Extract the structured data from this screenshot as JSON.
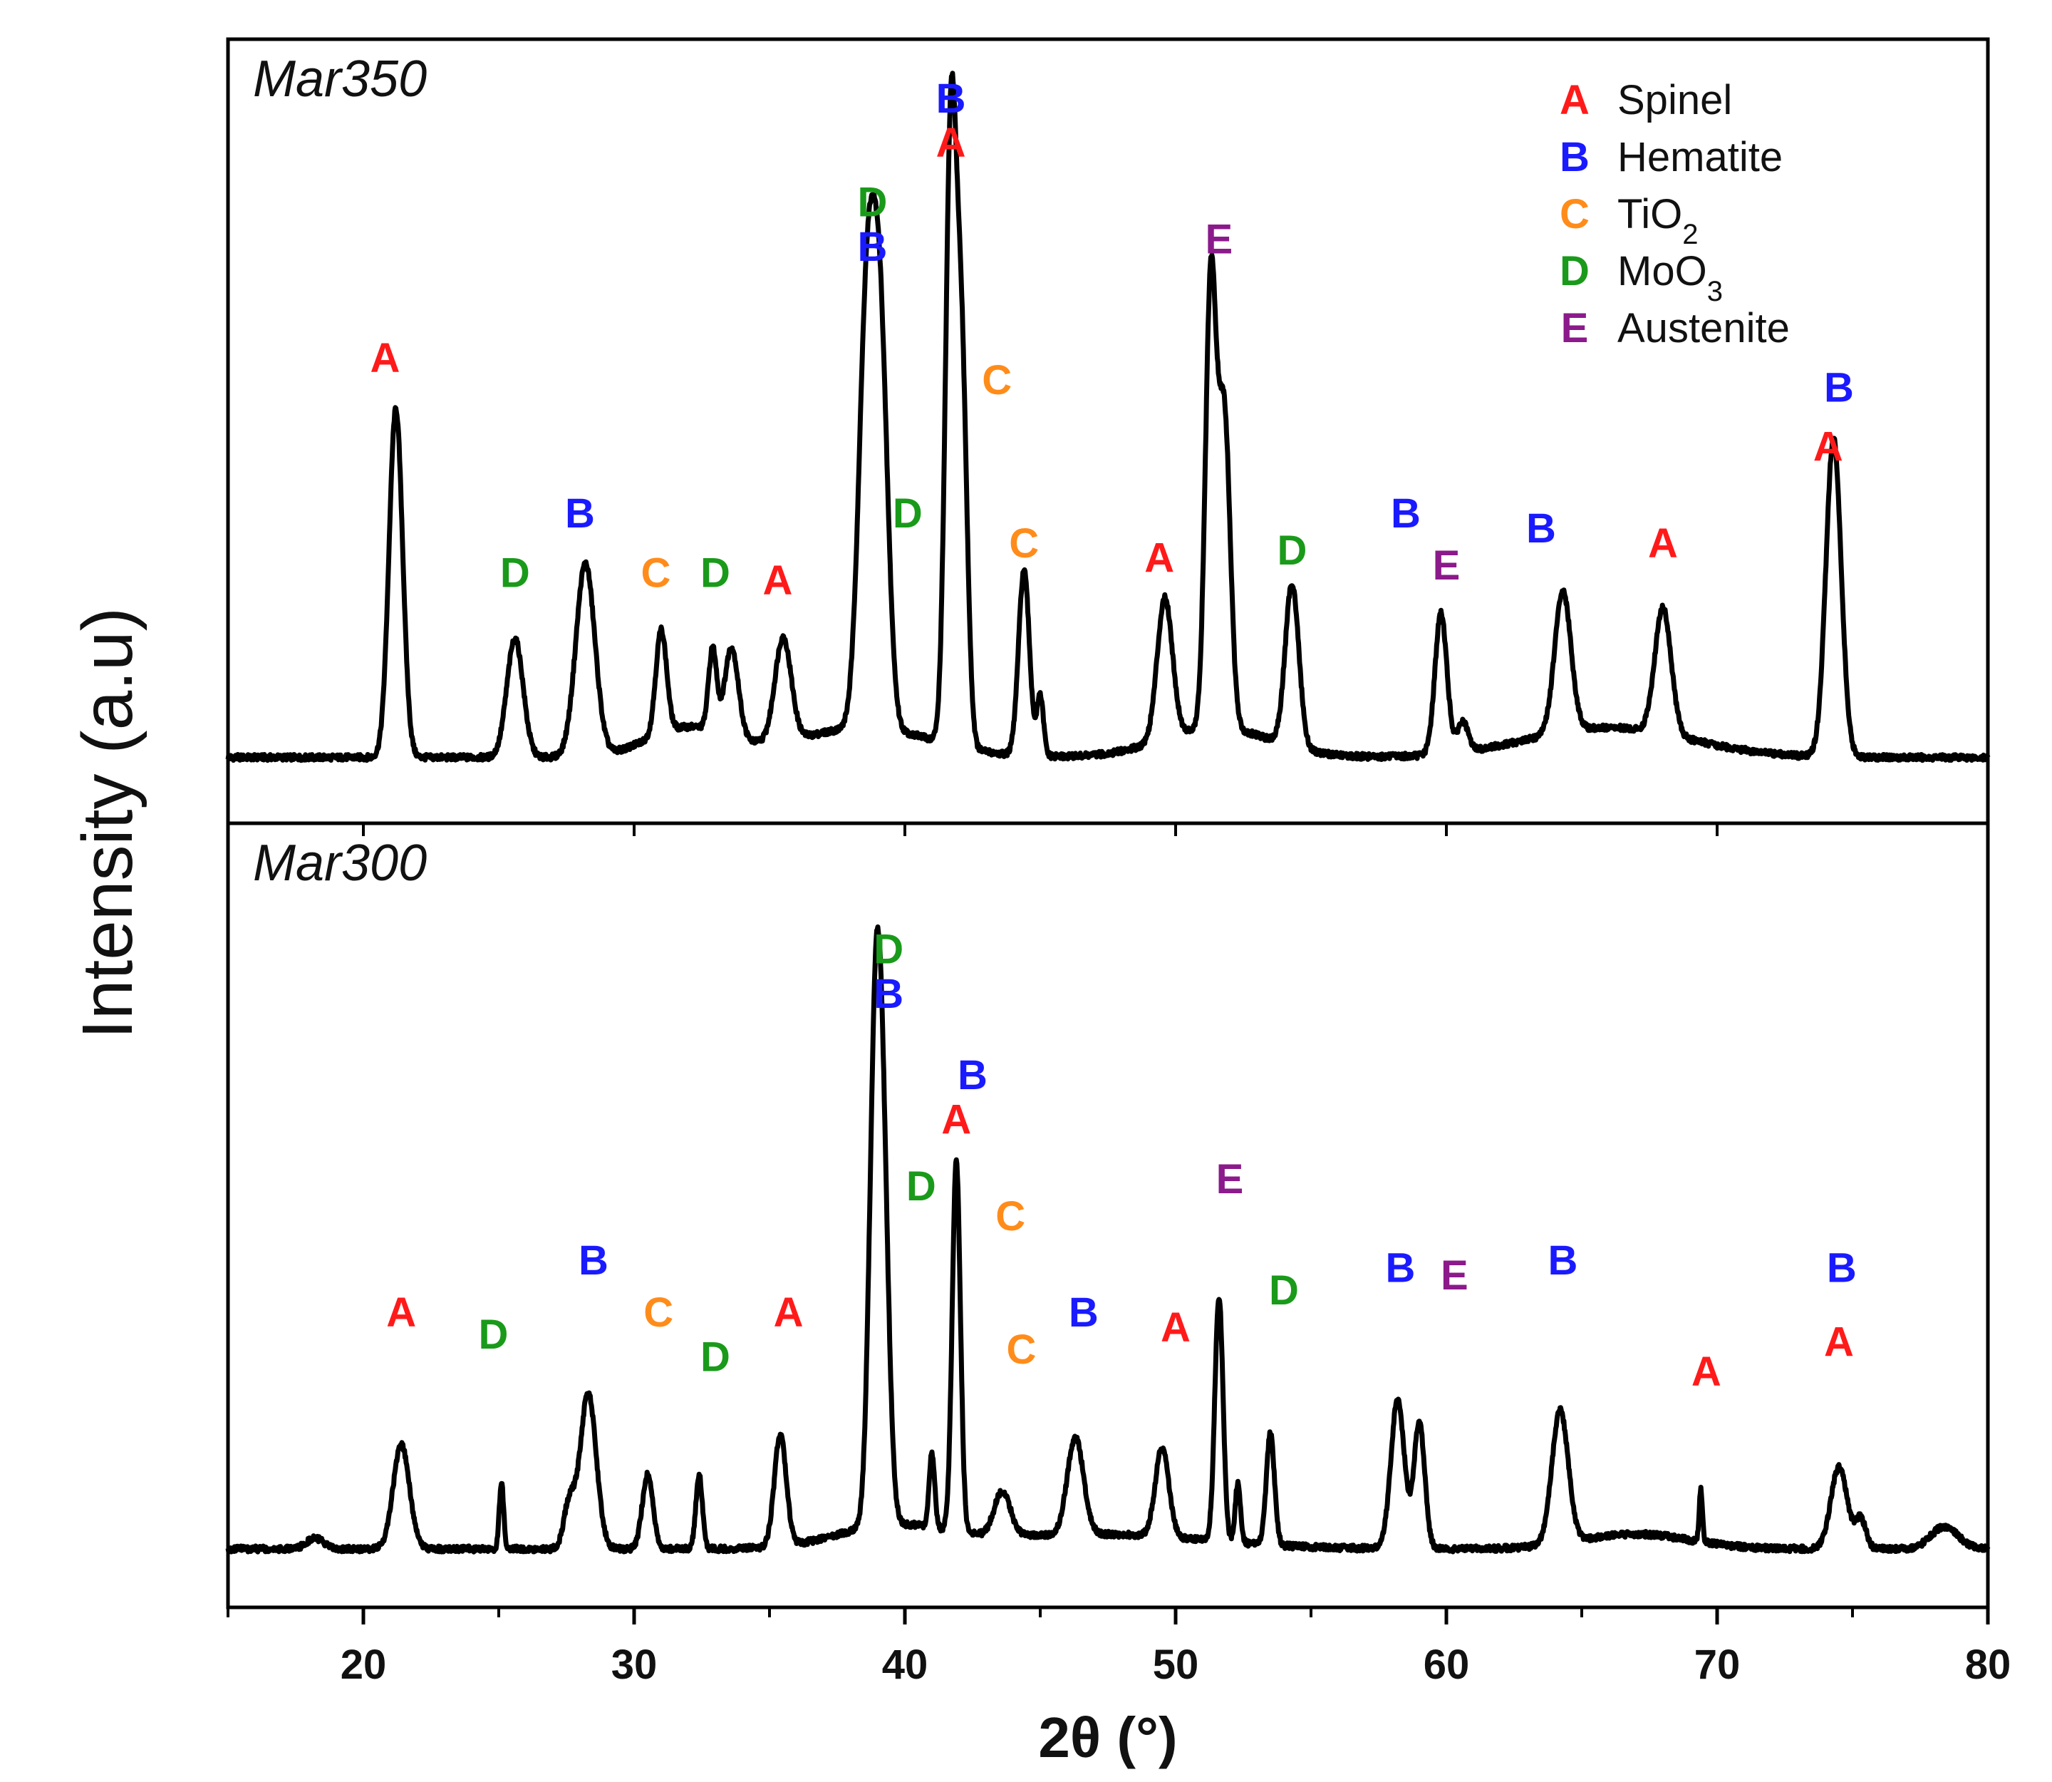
{
  "chart_data": {
    "type": "line",
    "xlabel": "2θ (°)",
    "ylabel": "Intensity (a.u)",
    "xlim": [
      15,
      80
    ],
    "xticks": [
      20,
      30,
      40,
      50,
      60,
      70,
      80
    ],
    "ylim": [
      0,
      100
    ],
    "grid": false,
    "phases": {
      "A": {
        "name": "Spinel",
        "color": "#ff1a1a"
      },
      "B": {
        "name": "Hematite",
        "color": "#1a1aff"
      },
      "C": {
        "name": "TiO",
        "sub": "2",
        "color": "#ff8c1a"
      },
      "D": {
        "name": "MoO",
        "sub": "3",
        "color": "#1a9a1a"
      },
      "E": {
        "name": "Austenite",
        "color": "#8b1a8b"
      }
    },
    "legend": {
      "position": "top-right",
      "entries": [
        {
          "letter": "A",
          "label": "Spinel",
          "sub": ""
        },
        {
          "letter": "B",
          "label": "Hematite",
          "sub": ""
        },
        {
          "letter": "C",
          "label": "TiO",
          "sub": "2"
        },
        {
          "letter": "D",
          "label": "MoO",
          "sub": "3"
        },
        {
          "letter": "E",
          "label": "Austenite",
          "sub": ""
        }
      ]
    },
    "panels": [
      {
        "name": "Mar350",
        "baseline": 6,
        "humps": [
          {
            "x": 32,
            "h": 4,
            "w": 1.5
          },
          {
            "x": 38.5,
            "h": 4,
            "w": 2.5
          },
          {
            "x": 51.5,
            "h": 4,
            "w": 2
          },
          {
            "x": 66,
            "h": 4,
            "w": 3
          }
        ],
        "peaks": [
          {
            "x": 21.2,
            "h": 47,
            "w": 0.25
          },
          {
            "x": 25.6,
            "h": 16,
            "w": 0.3
          },
          {
            "x": 28.2,
            "h": 26,
            "w": 0.35
          },
          {
            "x": 31.0,
            "h": 14,
            "w": 0.2
          },
          {
            "x": 32.9,
            "h": 11,
            "w": 0.15
          },
          {
            "x": 33.6,
            "h": 12,
            "w": 0.25
          },
          {
            "x": 35.5,
            "h": 14,
            "w": 0.3
          },
          {
            "x": 38.6,
            "h": 56,
            "w": 0.3
          },
          {
            "x": 39.1,
            "h": 48,
            "w": 0.28
          },
          {
            "x": 41.7,
            "h": 82,
            "w": 0.2
          },
          {
            "x": 42.1,
            "h": 50,
            "w": 0.2
          },
          {
            "x": 44.4,
            "h": 25,
            "w": 0.2
          },
          {
            "x": 45.0,
            "h": 8,
            "w": 0.12
          },
          {
            "x": 49.6,
            "h": 19,
            "w": 0.28
          },
          {
            "x": 51.3,
            "h": 60,
            "w": 0.2
          },
          {
            "x": 51.8,
            "h": 42,
            "w": 0.22
          },
          {
            "x": 54.3,
            "h": 22,
            "w": 0.25
          },
          {
            "x": 59.8,
            "h": 19,
            "w": 0.22
          },
          {
            "x": 60.6,
            "h": 4,
            "w": 0.2
          },
          {
            "x": 64.3,
            "h": 19,
            "w": 0.3
          },
          {
            "x": 68.0,
            "h": 17,
            "w": 0.3
          },
          {
            "x": 74.3,
            "h": 43,
            "w": 0.28
          }
        ],
        "labels": [
          {
            "x": 20.8,
            "y": 58,
            "t": [
              "A"
            ]
          },
          {
            "x": 25.6,
            "y": 29,
            "t": [
              "D"
            ]
          },
          {
            "x": 28.0,
            "y": 37,
            "t": [
              "B"
            ]
          },
          {
            "x": 30.8,
            "y": 29,
            "t": [
              "C"
            ]
          },
          {
            "x": 33.0,
            "y": 29,
            "t": [
              "D"
            ]
          },
          {
            "x": 35.3,
            "y": 28,
            "t": [
              "A"
            ]
          },
          {
            "x": 38.8,
            "y": 79,
            "t": [
              "D"
            ]
          },
          {
            "x": 38.8,
            "y": 73,
            "t": [
              "B"
            ]
          },
          {
            "x": 41.7,
            "y": 87,
            "t": [
              "A"
            ]
          },
          {
            "x": 41.7,
            "y": 93,
            "t": [
              "B"
            ]
          },
          {
            "x": 40.1,
            "y": 37,
            "t": [
              "D"
            ]
          },
          {
            "x": 43.4,
            "y": 55,
            "t": [
              "C"
            ]
          },
          {
            "x": 44.4,
            "y": 33,
            "t": [
              "C"
            ]
          },
          {
            "x": 49.4,
            "y": 31,
            "t": [
              "A"
            ]
          },
          {
            "x": 51.6,
            "y": 74,
            "t": [
              "E"
            ]
          },
          {
            "x": 54.3,
            "y": 32,
            "t": [
              "D"
            ]
          },
          {
            "x": 58.5,
            "y": 37,
            "t": [
              "B"
            ]
          },
          {
            "x": 60.0,
            "y": 30,
            "t": [
              "E"
            ]
          },
          {
            "x": 63.5,
            "y": 35,
            "t": [
              "B"
            ]
          },
          {
            "x": 68.0,
            "y": 33,
            "t": [
              "A"
            ]
          },
          {
            "x": 74.1,
            "y": 46,
            "t": [
              "A"
            ]
          },
          {
            "x": 74.5,
            "y": 54,
            "t": [
              "B"
            ]
          }
        ]
      },
      {
        "name": "Mar300",
        "baseline": 5,
        "humps": [
          {
            "x": 39.5,
            "h": 3,
            "w": 2
          },
          {
            "x": 47,
            "h": 2,
            "w": 4
          },
          {
            "x": 67,
            "h": 2,
            "w": 2
          }
        ],
        "peaks": [
          {
            "x": 21.4,
            "h": 14,
            "w": 0.3
          },
          {
            "x": 25.1,
            "h": 9,
            "w": 0.08
          },
          {
            "x": 28.3,
            "h": 21,
            "w": 0.3
          },
          {
            "x": 27.6,
            "h": 6,
            "w": 0.2
          },
          {
            "x": 30.5,
            "h": 10,
            "w": 0.2
          },
          {
            "x": 32.4,
            "h": 10,
            "w": 0.12
          },
          {
            "x": 35.4,
            "h": 15,
            "w": 0.22
          },
          {
            "x": 38.9,
            "h": 60,
            "w": 0.22
          },
          {
            "x": 39.2,
            "h": 40,
            "w": 0.22
          },
          {
            "x": 41.0,
            "h": 10,
            "w": 0.1
          },
          {
            "x": 41.9,
            "h": 50,
            "w": 0.15
          },
          {
            "x": 43.6,
            "h": 6,
            "w": 0.3
          },
          {
            "x": 46.3,
            "h": 13,
            "w": 0.3
          },
          {
            "x": 49.5,
            "h": 12,
            "w": 0.25
          },
          {
            "x": 51.6,
            "h": 33,
            "w": 0.15
          },
          {
            "x": 52.3,
            "h": 8,
            "w": 0.1
          },
          {
            "x": 53.5,
            "h": 15,
            "w": 0.15
          },
          {
            "x": 58.2,
            "h": 20,
            "w": 0.25
          },
          {
            "x": 59.0,
            "h": 17,
            "w": 0.2
          },
          {
            "x": 64.2,
            "h": 18,
            "w": 0.3
          },
          {
            "x": 69.4,
            "h": 7,
            "w": 0.06
          },
          {
            "x": 74.5,
            "h": 11,
            "w": 0.3
          },
          {
            "x": 75.3,
            "h": 4,
            "w": 0.2
          },
          {
            "x": 78.4,
            "h": 3,
            "w": 0.5
          },
          {
            "x": 18.2,
            "h": 1.5,
            "w": 0.3
          }
        ],
        "labels": [
          {
            "x": 21.4,
            "y": 35,
            "t": [
              "A"
            ]
          },
          {
            "x": 24.8,
            "y": 32,
            "t": [
              "D"
            ]
          },
          {
            "x": 28.5,
            "y": 42,
            "t": [
              "B"
            ]
          },
          {
            "x": 30.9,
            "y": 35,
            "t": [
              "C"
            ]
          },
          {
            "x": 33.0,
            "y": 29,
            "t": [
              "D"
            ]
          },
          {
            "x": 35.7,
            "y": 35,
            "t": [
              "A"
            ]
          },
          {
            "x": 39.4,
            "y": 84,
            "t": [
              "D"
            ]
          },
          {
            "x": 39.4,
            "y": 78,
            "t": [
              "B"
            ]
          },
          {
            "x": 41.9,
            "y": 61,
            "t": [
              "A"
            ]
          },
          {
            "x": 42.5,
            "y": 67,
            "t": [
              "B"
            ]
          },
          {
            "x": 40.6,
            "y": 52,
            "t": [
              "D"
            ]
          },
          {
            "x": 43.9,
            "y": 48,
            "t": [
              "C"
            ]
          },
          {
            "x": 44.3,
            "y": 30,
            "t": [
              "C"
            ]
          },
          {
            "x": 46.6,
            "y": 35,
            "t": [
              "B"
            ]
          },
          {
            "x": 50.0,
            "y": 33,
            "t": [
              "A"
            ]
          },
          {
            "x": 52.0,
            "y": 53,
            "t": [
              "E"
            ]
          },
          {
            "x": 54.0,
            "y": 38,
            "t": [
              "D"
            ]
          },
          {
            "x": 58.3,
            "y": 41,
            "t": [
              "B"
            ]
          },
          {
            "x": 60.3,
            "y": 40,
            "t": [
              "E"
            ]
          },
          {
            "x": 64.3,
            "y": 42,
            "t": [
              "B"
            ]
          },
          {
            "x": 69.6,
            "y": 27,
            "t": [
              "A"
            ]
          },
          {
            "x": 74.5,
            "y": 31,
            "t": [
              "A"
            ]
          },
          {
            "x": 74.6,
            "y": 41,
            "t": [
              "B"
            ]
          }
        ]
      }
    ]
  }
}
